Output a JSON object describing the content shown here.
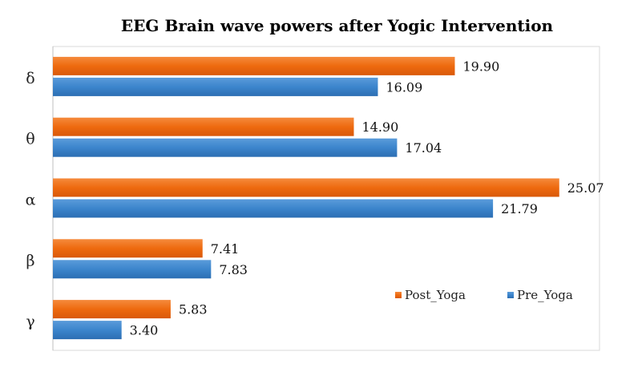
{
  "chart_data": {
    "type": "bar",
    "orientation": "horizontal",
    "title": "EEG Brain wave powers after Yogic Intervention",
    "categories": [
      "δ",
      "θ",
      "α",
      "β",
      "γ"
    ],
    "series": [
      {
        "name": "Post_Yoga",
        "color": "#ED6D12",
        "values": [
          19.9,
          14.9,
          25.07,
          7.41,
          5.83
        ]
      },
      {
        "name": "Pre_Yoga",
        "color": "#3A86CF",
        "values": [
          16.09,
          17.04,
          21.79,
          7.83,
          3.4
        ]
      }
    ],
    "value_labels": {
      "Post_Yoga": [
        "19.90",
        "14.90",
        "25.07",
        "7.41",
        "5.83"
      ],
      "Pre_Yoga": [
        "16.09",
        "17.04",
        "21.79",
        "7.83",
        "3.40"
      ]
    },
    "xlim": [
      0,
      30
    ],
    "grid": false,
    "legend_position": "bottom-right"
  }
}
